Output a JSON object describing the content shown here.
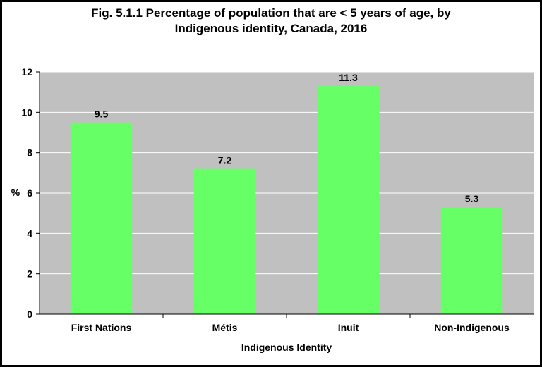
{
  "chart_data": {
    "type": "bar",
    "title_line1": "Fig. 5.1.1 Percentage of population that are < 5 years of age, by",
    "title_line2": "Indigenous identity, Canada, 2016",
    "xlabel": "Indigenous Identity",
    "ylabel": "%",
    "categories": [
      "First Nations",
      "Métis",
      "Inuit",
      "Non-Indigenous"
    ],
    "values": [
      9.5,
      7.2,
      11.3,
      5.3
    ],
    "value_labels": [
      "9.5",
      "7.2",
      "11.3",
      "5.3"
    ],
    "ylim": [
      0,
      12
    ],
    "yticks": [
      0,
      2,
      4,
      6,
      8,
      10,
      12
    ],
    "grid": true,
    "bar_color": "#66ff66",
    "plot_background": "#c0c0c0",
    "gridline_color": "#ffffff"
  }
}
